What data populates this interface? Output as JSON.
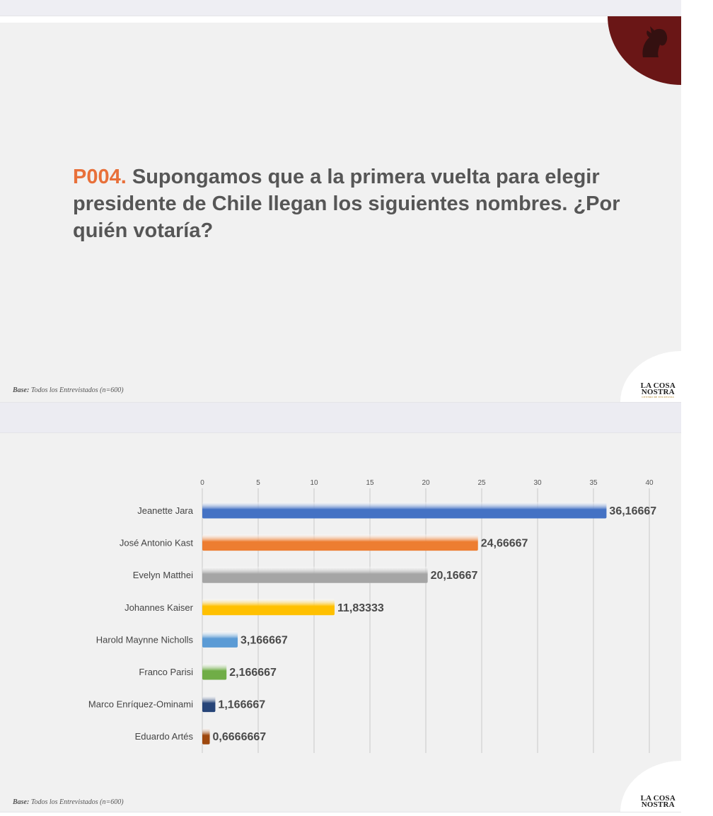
{
  "slide1": {
    "question_code": "P004.",
    "question_text": " Supongamos que a la primera vuelta para elegir presidente de Chile llegan los siguientes nombres. ¿Por quién votaría?",
    "base_label": "Base:",
    "base_text": " Todos los Entrevistados (n=600)",
    "logo_line1": "LA COSA",
    "logo_line2": "NOSTRA",
    "logo_sub": "CENTRO DE ENCUESTAS"
  },
  "slide2": {
    "base_label": "Base:",
    "base_text": " Todos los Entrevistados (n=600)",
    "logo_line1": "LA COSA",
    "logo_line2": "NOSTRA"
  },
  "colors": {
    "accent": "#e8703a",
    "brand_dark_red": "#6a1616",
    "question_text": "#565656"
  },
  "chart_data": {
    "type": "bar",
    "orientation": "horizontal",
    "categories": [
      "Jeanette Jara",
      "José Antonio Kast",
      "Evelyn Matthei",
      "Johannes Kaiser",
      "Harold Maynne Nicholls",
      "Franco Parisi",
      "Marco Enríquez-Ominami",
      "Eduardo Artés"
    ],
    "values": [
      36.16667,
      24.66667,
      20.16667,
      11.83333,
      3.166667,
      2.166667,
      1.166667,
      0.6666667
    ],
    "value_labels": [
      "36,16667",
      "24,66667",
      "20,16667",
      "11,83333",
      "3,166667",
      "2,166667",
      "1,166667",
      "0,6666667"
    ],
    "bar_colors": [
      "#4472c4",
      "#ed7d31",
      "#a5a5a5",
      "#ffc000",
      "#5b9bd5",
      "#70ad47",
      "#264478",
      "#9e480e"
    ],
    "xlim": [
      0,
      40
    ],
    "xticks": [
      "0",
      "5",
      "10",
      "15",
      "20",
      "25",
      "30",
      "35",
      "40"
    ],
    "tick_values": [
      0,
      5,
      10,
      15,
      20,
      25,
      30,
      35,
      40
    ],
    "axis_position": "top",
    "grid": true,
    "legend": "none"
  }
}
